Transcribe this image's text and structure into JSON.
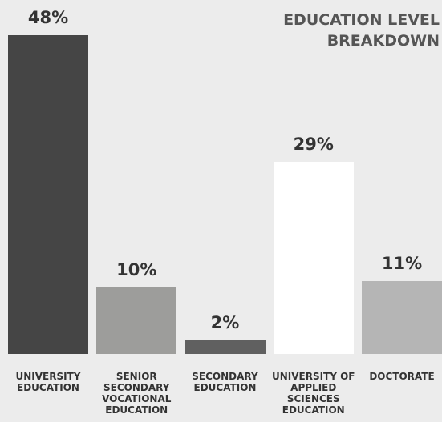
{
  "chart_data": {
    "type": "bar",
    "title": "EDUCATION LEVEL BREAKDOWN",
    "categories": [
      "UNIVERSITY EDUCATION",
      "SENIOR SECONDARY VOCATIONAL EDUCATION",
      "SECONDARY EDUCATION",
      "UNIVERSITY OF APPLIED SCIENCES EDUCATION",
      "DOCTORATE"
    ],
    "values": [
      48,
      10,
      2,
      29,
      11
    ],
    "value_labels": [
      "48%",
      "10%",
      "2%",
      "29%",
      "11%"
    ],
    "colors": [
      "#454545",
      "#9d9d9b",
      "#606060",
      "#ffffff",
      "#b5b5b5"
    ]
  }
}
